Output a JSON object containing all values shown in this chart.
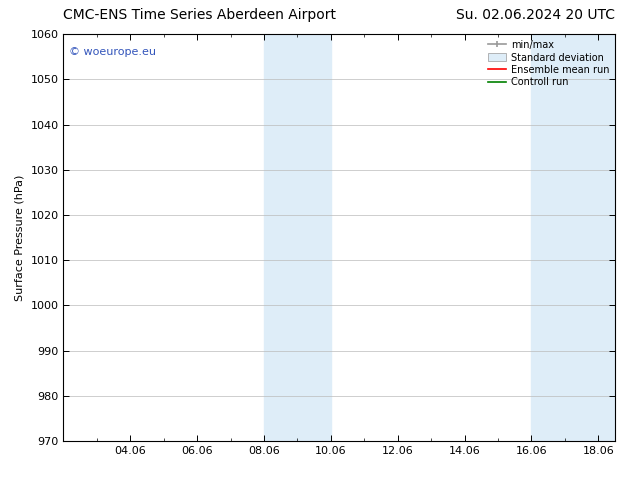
{
  "title_left": "CMC-ENS Time Series Aberdeen Airport",
  "title_right": "Su. 02.06.2024 20 UTC",
  "ylabel": "Surface Pressure (hPa)",
  "ylim": [
    970,
    1060
  ],
  "yticks": [
    970,
    980,
    990,
    1000,
    1010,
    1020,
    1030,
    1040,
    1050,
    1060
  ],
  "xtick_labels": [
    "04.06",
    "06.06",
    "08.06",
    "10.06",
    "12.06",
    "14.06",
    "16.06",
    "18.06"
  ],
  "xtick_positions": [
    2,
    4,
    6,
    8,
    10,
    12,
    14,
    16
  ],
  "xlim": [
    0,
    16.5
  ],
  "shaded_bands": [
    {
      "x_start": 6,
      "x_end": 8
    },
    {
      "x_start": 14,
      "x_end": 16.5
    }
  ],
  "shaded_color": "#deedf8",
  "watermark_text": "© woeurope.eu",
  "watermark_color": "#3355bb",
  "legend_items": [
    {
      "label": "min/max",
      "color": "#999999",
      "style": "minmax"
    },
    {
      "label": "Standard deviation",
      "color": "#ccddee",
      "style": "band"
    },
    {
      "label": "Ensemble mean run",
      "color": "red",
      "style": "line"
    },
    {
      "label": "Controll run",
      "color": "green",
      "style": "line"
    }
  ],
  "background_color": "#ffffff",
  "plot_background": "#ffffff",
  "grid_color": "#bbbbbb",
  "title_fontsize": 10,
  "axis_label_fontsize": 8,
  "tick_fontsize": 8,
  "legend_fontsize": 7
}
